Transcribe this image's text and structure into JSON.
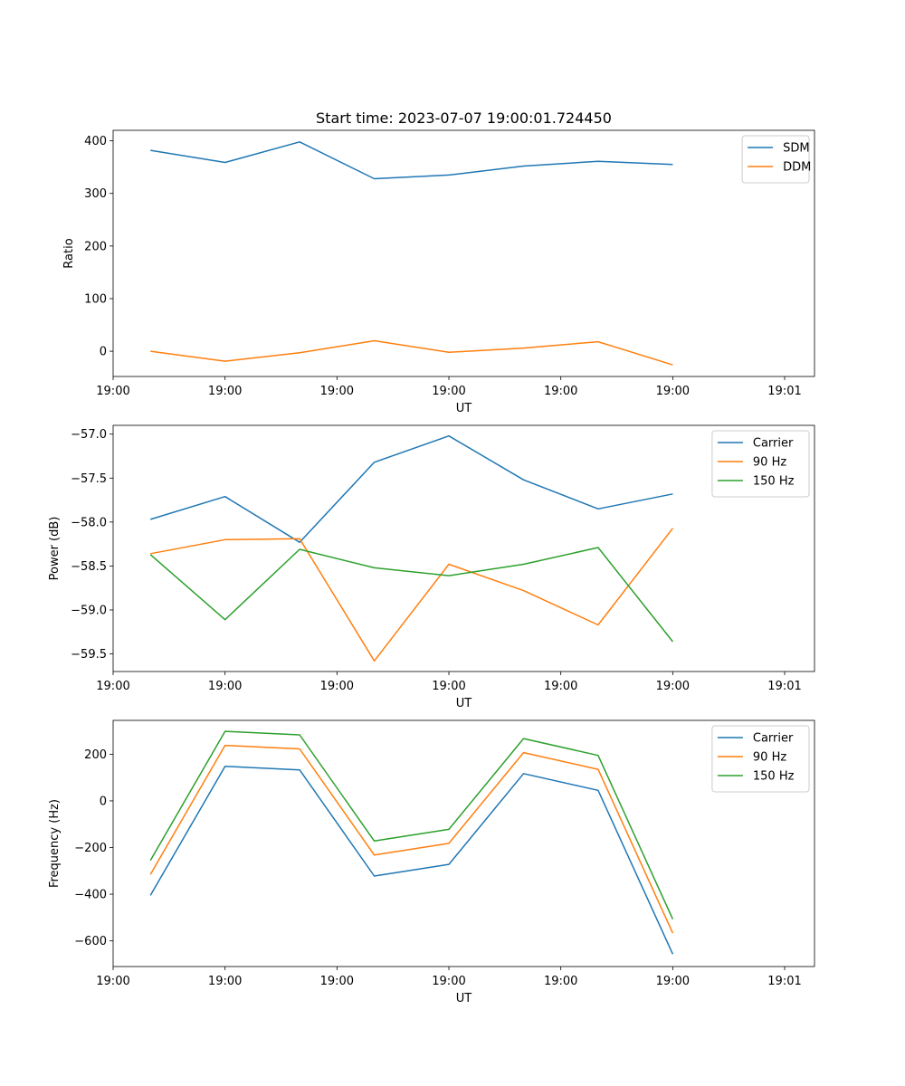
{
  "chart_data": [
    {
      "type": "line",
      "title": "Start time: 2023-07-07 19:00:01.724450",
      "xlabel": "UT",
      "ylabel": "Ratio",
      "x": [
        1,
        2,
        3,
        4,
        5,
        6,
        7,
        8
      ],
      "xlim": [
        0.5,
        9.9
      ],
      "x_ticks": [
        0.5,
        2,
        3.5,
        5,
        6.5,
        8,
        9.5
      ],
      "x_tick_labels": [
        "19:00",
        "19:00",
        "19:00",
        "19:00",
        "19:00",
        "19:00",
        "19:01"
      ],
      "ylim": [
        -48,
        420
      ],
      "y_ticks": [
        0,
        100,
        200,
        300,
        400
      ],
      "y_tick_labels": [
        "0",
        "100",
        "200",
        "300",
        "400"
      ],
      "legend_loc": "top-right",
      "series": [
        {
          "name": "SDM",
          "color": "#1f77b4",
          "values": [
            382,
            359,
            398,
            328,
            335,
            352,
            361,
            355
          ]
        },
        {
          "name": "DDM",
          "color": "#ff7f0e",
          "values": [
            0,
            -19,
            -3,
            20,
            -2,
            6,
            18,
            -26
          ]
        }
      ]
    },
    {
      "type": "line",
      "xlabel": "UT",
      "ylabel": "Power (dB)",
      "x": [
        1,
        2,
        3,
        4,
        5,
        6,
        7,
        8
      ],
      "xlim": [
        0.5,
        9.9
      ],
      "x_ticks": [
        0.5,
        2,
        3.5,
        5,
        6.5,
        8,
        9.5
      ],
      "x_tick_labels": [
        "19:00",
        "19:00",
        "19:00",
        "19:00",
        "19:00",
        "19:00",
        "19:01"
      ],
      "ylim": [
        -59.7,
        -56.9
      ],
      "y_ticks": [
        -57.0,
        -57.5,
        -58.0,
        -58.5,
        -59.0,
        -59.5
      ],
      "y_tick_labels": [
        "−57.0",
        "−57.5",
        "−58.0",
        "−58.5",
        "−59.0",
        "−59.5"
      ],
      "legend_loc": "top-right",
      "series": [
        {
          "name": "Carrier",
          "color": "#1f77b4",
          "values": [
            -57.97,
            -57.71,
            -58.23,
            -57.32,
            -57.02,
            -57.52,
            -57.85,
            -57.68
          ]
        },
        {
          "name": "90 Hz",
          "color": "#ff7f0e",
          "values": [
            -58.36,
            -58.2,
            -58.19,
            -59.58,
            -58.48,
            -58.78,
            -59.17,
            -58.07
          ]
        },
        {
          "name": "150 Hz",
          "color": "#2ca02c",
          "values": [
            -58.37,
            -59.11,
            -58.31,
            -58.52,
            -58.61,
            -58.48,
            -58.29,
            -59.36
          ]
        }
      ]
    },
    {
      "type": "line",
      "xlabel": "UT",
      "ylabel": "Frequency (Hz)",
      "x": [
        1,
        2,
        3,
        4,
        5,
        6,
        7,
        8
      ],
      "xlim": [
        0.5,
        9.9
      ],
      "x_ticks": [
        0.5,
        2,
        3.5,
        5,
        6.5,
        8,
        9.5
      ],
      "x_tick_labels": [
        "19:00",
        "19:00",
        "19:00",
        "19:00",
        "19:00",
        "19:00",
        "19:01"
      ],
      "ylim": [
        -710,
        345
      ],
      "y_ticks": [
        200,
        0,
        -200,
        -400,
        -600
      ],
      "y_tick_labels": [
        "200",
        "0",
        "−200",
        "−400",
        "−600"
      ],
      "legend_loc": "top-right",
      "series": [
        {
          "name": "Carrier",
          "color": "#1f77b4",
          "values": [
            -405,
            148,
            133,
            -322,
            -272,
            117,
            45,
            -657
          ]
        },
        {
          "name": "90 Hz",
          "color": "#ff7f0e",
          "values": [
            -315,
            238,
            223,
            -232,
            -182,
            207,
            135,
            -567
          ]
        },
        {
          "name": "150 Hz",
          "color": "#2ca02c",
          "values": [
            -255,
            298,
            283,
            -172,
            -122,
            267,
            195,
            -507
          ]
        }
      ]
    }
  ]
}
